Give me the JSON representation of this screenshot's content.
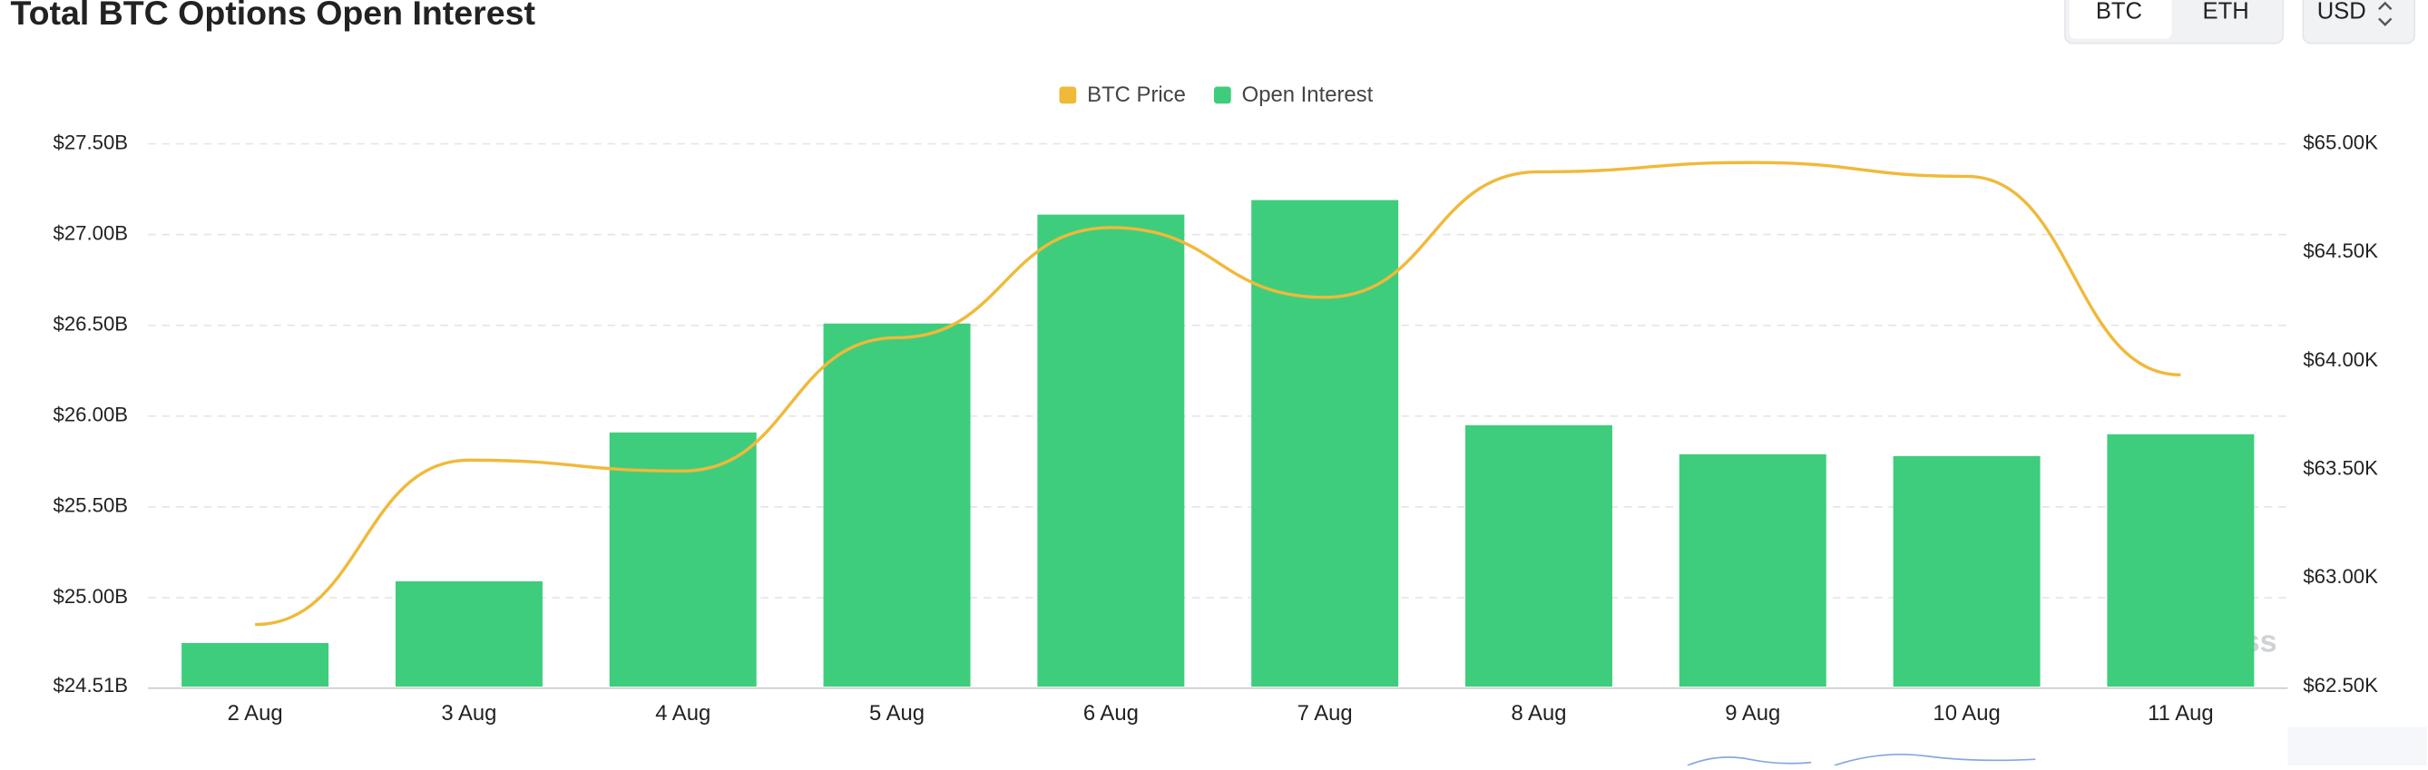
{
  "header": {
    "title": "Total BTC Options Open Interest",
    "coin_buttons": [
      "BTC",
      "ETH"
    ],
    "currency": "USD"
  },
  "watermark": "coinglass",
  "chart_data": {
    "type": "bar-line",
    "categories": [
      "2 Aug",
      "3 Aug",
      "4 Aug",
      "5 Aug",
      "6 Aug",
      "7 Aug",
      "8 Aug",
      "9 Aug",
      "10 Aug",
      "11 Aug"
    ],
    "series": [
      {
        "name": "BTC Price",
        "color": "#f0b93a",
        "type": "line",
        "axis": "y2",
        "values": [
          62786,
          63543,
          63493,
          64107,
          64614,
          64293,
          64871,
          64914,
          64850,
          63936
        ]
      },
      {
        "name": "Open Interest",
        "color": "#3ecd7c",
        "type": "bar",
        "values": [
          24.75,
          25.09,
          25.91,
          26.51,
          27.11,
          27.19,
          25.95,
          25.79,
          25.78,
          25.9
        ]
      }
    ],
    "ylim": [
      24.51,
      27.5
    ],
    "yticks": [
      {
        "value": 24.51,
        "label": "$24.51B"
      },
      {
        "value": 25,
        "label": "$25.00B"
      },
      {
        "value": 25.5,
        "label": "$25.50B"
      },
      {
        "value": 26,
        "label": "$26.00B"
      },
      {
        "value": 26.5,
        "label": "$26.50B"
      },
      {
        "value": 27,
        "label": "$27.00B"
      },
      {
        "value": 27.5,
        "label": "$27.50B"
      }
    ],
    "y2lim": [
      62500,
      65000
    ],
    "y2ticks": [
      {
        "value": 62500,
        "label": "$62.50K"
      },
      {
        "value": 63000,
        "label": "$63.00K"
      },
      {
        "value": 63500,
        "label": "$63.50K"
      },
      {
        "value": 64000,
        "label": "$64.00K"
      },
      {
        "value": 64500,
        "label": "$64.50K"
      },
      {
        "value": 65000,
        "label": "$65.00K"
      }
    ],
    "grid": true,
    "legend": "top"
  }
}
